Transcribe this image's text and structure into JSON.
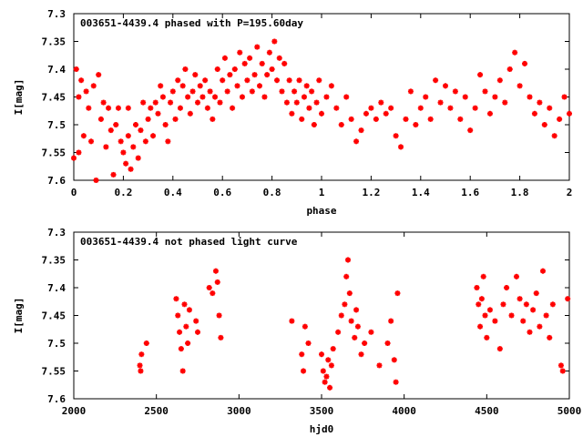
{
  "chart_data": [
    {
      "type": "scatter",
      "title": "003651-4439.4 phased with P=195.60day",
      "xlabel": "phase",
      "ylabel": "I[mag]",
      "xlim": [
        0,
        2
      ],
      "ylim": [
        7.3,
        7.6
      ],
      "y_inverted": true,
      "x_ticks": [
        "0",
        "0.2",
        "0.4",
        "0.6",
        "0.8",
        "1",
        "1.2",
        "1.4",
        "1.6",
        "1.8",
        "2"
      ],
      "y_ticks": [
        "7.3",
        "7.35",
        "7.4",
        "7.45",
        "7.5",
        "7.55",
        "7.6"
      ],
      "grid": false,
      "marker_color": "#ff0000",
      "series": [
        {
          "points": [
            [
              0.0,
              7.56
            ],
            [
              0.01,
              7.4
            ],
            [
              0.02,
              7.45
            ],
            [
              0.02,
              7.55
            ],
            [
              0.03,
              7.42
            ],
            [
              0.04,
              7.52
            ],
            [
              0.05,
              7.44
            ],
            [
              0.06,
              7.47
            ],
            [
              0.07,
              7.53
            ],
            [
              0.08,
              7.43
            ],
            [
              0.09,
              7.6
            ],
            [
              0.1,
              7.41
            ],
            [
              0.11,
              7.49
            ],
            [
              0.12,
              7.46
            ],
            [
              0.13,
              7.54
            ],
            [
              0.14,
              7.47
            ],
            [
              0.15,
              7.51
            ],
            [
              0.16,
              7.59
            ],
            [
              0.17,
              7.5
            ],
            [
              0.18,
              7.47
            ],
            [
              0.19,
              7.53
            ],
            [
              0.2,
              7.55
            ],
            [
              0.21,
              7.57
            ],
            [
              0.22,
              7.52
            ],
            [
              0.22,
              7.47
            ],
            [
              0.23,
              7.58
            ],
            [
              0.24,
              7.54
            ],
            [
              0.25,
              7.5
            ],
            [
              0.26,
              7.56
            ],
            [
              0.27,
              7.51
            ],
            [
              0.28,
              7.46
            ],
            [
              0.29,
              7.53
            ],
            [
              0.3,
              7.49
            ],
            [
              0.31,
              7.47
            ],
            [
              0.32,
              7.52
            ],
            [
              0.33,
              7.46
            ],
            [
              0.34,
              7.48
            ],
            [
              0.35,
              7.43
            ],
            [
              0.36,
              7.45
            ],
            [
              0.37,
              7.5
            ],
            [
              0.38,
              7.53
            ],
            [
              0.39,
              7.46
            ],
            [
              0.4,
              7.44
            ],
            [
              0.41,
              7.49
            ],
            [
              0.42,
              7.42
            ],
            [
              0.43,
              7.47
            ],
            [
              0.44,
              7.43
            ],
            [
              0.45,
              7.4
            ],
            [
              0.46,
              7.45
            ],
            [
              0.47,
              7.48
            ],
            [
              0.48,
              7.44
            ],
            [
              0.49,
              7.41
            ],
            [
              0.5,
              7.46
            ],
            [
              0.51,
              7.43
            ],
            [
              0.52,
              7.45
            ],
            [
              0.53,
              7.42
            ],
            [
              0.54,
              7.47
            ],
            [
              0.55,
              7.44
            ],
            [
              0.56,
              7.49
            ],
            [
              0.57,
              7.45
            ],
            [
              0.58,
              7.4
            ],
            [
              0.59,
              7.46
            ],
            [
              0.6,
              7.42
            ],
            [
              0.61,
              7.38
            ],
            [
              0.62,
              7.44
            ],
            [
              0.63,
              7.41
            ],
            [
              0.64,
              7.47
            ],
            [
              0.65,
              7.4
            ],
            [
              0.66,
              7.43
            ],
            [
              0.67,
              7.37
            ],
            [
              0.68,
              7.45
            ],
            [
              0.69,
              7.39
            ],
            [
              0.7,
              7.42
            ],
            [
              0.71,
              7.38
            ],
            [
              0.72,
              7.44
            ],
            [
              0.73,
              7.41
            ],
            [
              0.74,
              7.36
            ],
            [
              0.75,
              7.43
            ],
            [
              0.76,
              7.39
            ],
            [
              0.77,
              7.45
            ],
            [
              0.78,
              7.41
            ],
            [
              0.79,
              7.37
            ],
            [
              0.8,
              7.4
            ],
            [
              0.81,
              7.35
            ],
            [
              0.82,
              7.42
            ],
            [
              0.83,
              7.38
            ],
            [
              0.84,
              7.44
            ],
            [
              0.85,
              7.39
            ],
            [
              0.86,
              7.46
            ],
            [
              0.87,
              7.42
            ],
            [
              0.88,
              7.48
            ],
            [
              0.89,
              7.44
            ],
            [
              0.9,
              7.46
            ],
            [
              0.91,
              7.42
            ],
            [
              0.92,
              7.49
            ],
            [
              0.93,
              7.45
            ],
            [
              0.94,
              7.43
            ],
            [
              0.95,
              7.47
            ],
            [
              0.96,
              7.44
            ],
            [
              0.97,
              7.5
            ],
            [
              0.98,
              7.46
            ],
            [
              0.99,
              7.42
            ],
            [
              1.0,
              7.48
            ],
            [
              1.02,
              7.45
            ],
            [
              1.04,
              7.43
            ],
            [
              1.06,
              7.47
            ],
            [
              1.08,
              7.5
            ],
            [
              1.1,
              7.45
            ],
            [
              1.12,
              7.49
            ],
            [
              1.14,
              7.53
            ],
            [
              1.16,
              7.51
            ],
            [
              1.18,
              7.48
            ],
            [
              1.2,
              7.47
            ],
            [
              1.22,
              7.49
            ],
            [
              1.24,
              7.46
            ],
            [
              1.26,
              7.48
            ],
            [
              1.28,
              7.47
            ],
            [
              1.3,
              7.52
            ],
            [
              1.32,
              7.54
            ],
            [
              1.34,
              7.49
            ],
            [
              1.36,
              7.44
            ],
            [
              1.38,
              7.5
            ],
            [
              1.4,
              7.47
            ],
            [
              1.42,
              7.45
            ],
            [
              1.44,
              7.49
            ],
            [
              1.46,
              7.42
            ],
            [
              1.48,
              7.46
            ],
            [
              1.5,
              7.43
            ],
            [
              1.52,
              7.47
            ],
            [
              1.54,
              7.44
            ],
            [
              1.56,
              7.49
            ],
            [
              1.58,
              7.45
            ],
            [
              1.6,
              7.51
            ],
            [
              1.62,
              7.47
            ],
            [
              1.64,
              7.41
            ],
            [
              1.66,
              7.44
            ],
            [
              1.68,
              7.48
            ],
            [
              1.7,
              7.45
            ],
            [
              1.72,
              7.42
            ],
            [
              1.74,
              7.46
            ],
            [
              1.76,
              7.4
            ],
            [
              1.78,
              7.37
            ],
            [
              1.8,
              7.43
            ],
            [
              1.82,
              7.39
            ],
            [
              1.84,
              7.45
            ],
            [
              1.86,
              7.48
            ],
            [
              1.88,
              7.46
            ],
            [
              1.9,
              7.5
            ],
            [
              1.92,
              7.47
            ],
            [
              1.94,
              7.52
            ],
            [
              1.96,
              7.49
            ],
            [
              1.98,
              7.45
            ],
            [
              2.0,
              7.48
            ]
          ]
        }
      ]
    },
    {
      "type": "scatter",
      "title": "003651-4439.4 not phased light curve",
      "xlabel": "hjd0",
      "ylabel": "I[mag]",
      "xlim": [
        2000,
        5000
      ],
      "ylim": [
        7.3,
        7.6
      ],
      "y_inverted": true,
      "x_ticks": [
        "2000",
        "2500",
        "3000",
        "3500",
        "4000",
        "4500",
        "5000"
      ],
      "y_ticks": [
        "7.3",
        "7.35",
        "7.4",
        "7.45",
        "7.5",
        "7.55",
        "7.6"
      ],
      "grid": false,
      "marker_color": "#ff0000",
      "series": [
        {
          "points": [
            [
              2400,
              7.54
            ],
            [
              2405,
              7.55
            ],
            [
              2410,
              7.52
            ],
            [
              2440,
              7.5
            ],
            [
              2620,
              7.42
            ],
            [
              2630,
              7.45
            ],
            [
              2640,
              7.48
            ],
            [
              2650,
              7.51
            ],
            [
              2660,
              7.55
            ],
            [
              2670,
              7.43
            ],
            [
              2680,
              7.47
            ],
            [
              2690,
              7.5
            ],
            [
              2700,
              7.44
            ],
            [
              2740,
              7.46
            ],
            [
              2750,
              7.48
            ],
            [
              2820,
              7.4
            ],
            [
              2840,
              7.41
            ],
            [
              2860,
              7.37
            ],
            [
              2870,
              7.39
            ],
            [
              2880,
              7.45
            ],
            [
              2890,
              7.49
            ],
            [
              3320,
              7.46
            ],
            [
              3380,
              7.52
            ],
            [
              3390,
              7.55
            ],
            [
              3400,
              7.47
            ],
            [
              3420,
              7.5
            ],
            [
              3500,
              7.52
            ],
            [
              3510,
              7.55
            ],
            [
              3520,
              7.57
            ],
            [
              3530,
              7.56
            ],
            [
              3540,
              7.53
            ],
            [
              3550,
              7.58
            ],
            [
              3560,
              7.54
            ],
            [
              3570,
              7.51
            ],
            [
              3600,
              7.48
            ],
            [
              3620,
              7.45
            ],
            [
              3640,
              7.43
            ],
            [
              3650,
              7.38
            ],
            [
              3660,
              7.35
            ],
            [
              3670,
              7.41
            ],
            [
              3680,
              7.46
            ],
            [
              3700,
              7.49
            ],
            [
              3710,
              7.44
            ],
            [
              3720,
              7.47
            ],
            [
              3740,
              7.52
            ],
            [
              3760,
              7.5
            ],
            [
              3800,
              7.48
            ],
            [
              3850,
              7.54
            ],
            [
              3900,
              7.5
            ],
            [
              3920,
              7.46
            ],
            [
              3940,
              7.53
            ],
            [
              3950,
              7.57
            ],
            [
              3960,
              7.41
            ],
            [
              4440,
              7.4
            ],
            [
              4450,
              7.43
            ],
            [
              4460,
              7.47
            ],
            [
              4470,
              7.42
            ],
            [
              4480,
              7.38
            ],
            [
              4490,
              7.45
            ],
            [
              4500,
              7.49
            ],
            [
              4520,
              7.44
            ],
            [
              4550,
              7.46
            ],
            [
              4580,
              7.51
            ],
            [
              4600,
              7.43
            ],
            [
              4620,
              7.4
            ],
            [
              4650,
              7.45
            ],
            [
              4680,
              7.38
            ],
            [
              4700,
              7.42
            ],
            [
              4720,
              7.46
            ],
            [
              4740,
              7.43
            ],
            [
              4760,
              7.48
            ],
            [
              4780,
              7.44
            ],
            [
              4800,
              7.41
            ],
            [
              4820,
              7.47
            ],
            [
              4840,
              7.37
            ],
            [
              4860,
              7.45
            ],
            [
              4880,
              7.49
            ],
            [
              4900,
              7.43
            ],
            [
              4950,
              7.54
            ],
            [
              4960,
              7.55
            ],
            [
              4990,
              7.42
            ]
          ]
        }
      ]
    }
  ]
}
